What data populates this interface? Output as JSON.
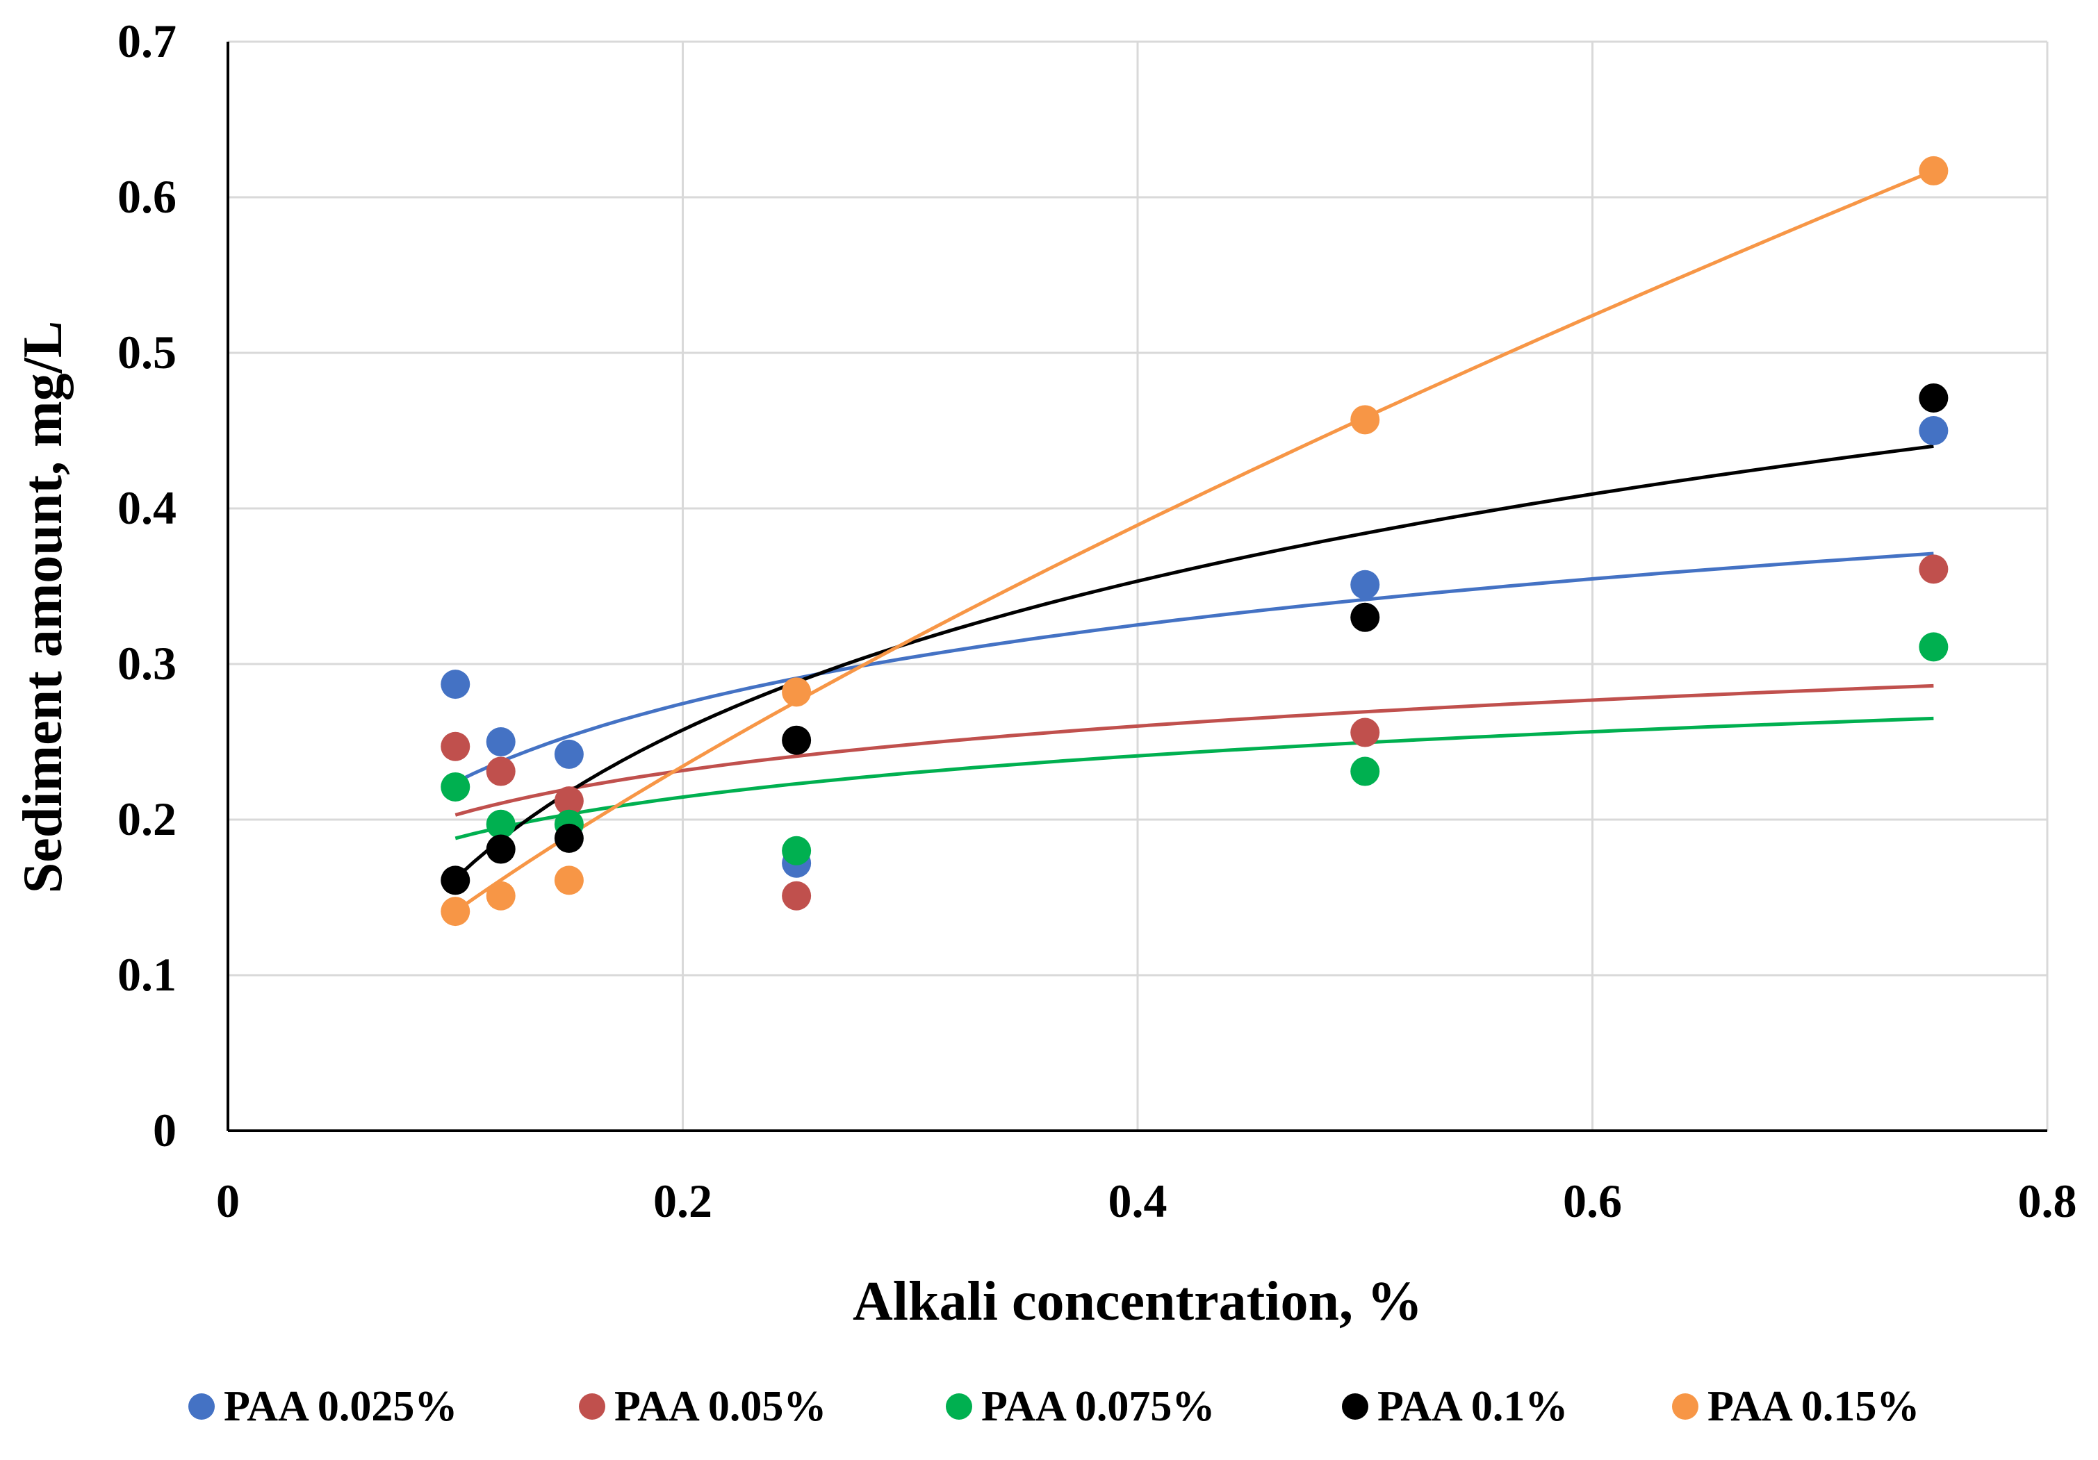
{
  "chart_data": {
    "type": "scatter",
    "title": "",
    "xlabel": "Alkali concentration, %",
    "ylabel": "Sediment amount, mg/L",
    "xlim": [
      0,
      0.8
    ],
    "ylim": [
      0,
      0.7
    ],
    "xticks": [
      0,
      0.2,
      0.4,
      0.6,
      0.8
    ],
    "xtick_labels": [
      "0",
      "0.2",
      "0.4",
      "0.6",
      "0.8"
    ],
    "yticks": [
      0,
      0.1,
      0.2,
      0.3,
      0.4,
      0.5,
      0.6,
      0.7
    ],
    "ytick_labels": [
      "0",
      "0.1",
      "0.2",
      "0.3",
      "0.4",
      "0.5",
      "0.6",
      "0.7"
    ],
    "grid": true,
    "legend_position": "bottom",
    "trendline": "logarithmic",
    "series": [
      {
        "name": "PAA 0.025%",
        "color": "#4472C4",
        "x": [
          0.1,
          0.12,
          0.15,
          0.25,
          0.5,
          0.75
        ],
        "y": [
          0.287,
          0.25,
          0.242,
          0.172,
          0.351,
          0.45
        ],
        "trend_start": 0.224,
        "trend_end": 0.371
      },
      {
        "name": "PAA 0.05%",
        "color": "#C0504D",
        "x": [
          0.1,
          0.12,
          0.15,
          0.25,
          0.5,
          0.75
        ],
        "y": [
          0.247,
          0.231,
          0.212,
          0.151,
          0.256,
          0.361
        ],
        "trend_start": 0.203,
        "trend_end": 0.286
      },
      {
        "name": "PAA 0.075%",
        "color": "#00B050",
        "x": [
          0.1,
          0.12,
          0.15,
          0.25,
          0.5,
          0.75
        ],
        "y": [
          0.221,
          0.197,
          0.197,
          0.18,
          0.231,
          0.311
        ],
        "trend_start": 0.188,
        "trend_end": 0.265
      },
      {
        "name": "PAA 0.1%",
        "color": "#000000",
        "x": [
          0.1,
          0.12,
          0.15,
          0.25,
          0.5,
          0.75
        ],
        "y": [
          0.161,
          0.181,
          0.188,
          0.251,
          0.33,
          0.471
        ],
        "trend_start": 0.162,
        "trend_end": 0.44
      },
      {
        "name": "PAA 0.15%",
        "color": "#F79646",
        "x": [
          0.1,
          0.12,
          0.15,
          0.25,
          0.5,
          0.75
        ],
        "y": [
          0.141,
          0.151,
          0.161,
          0.282,
          0.457,
          0.617
        ],
        "trend_start": 0.141,
        "trend_end": 0.617,
        "trend_type": "power"
      }
    ]
  }
}
